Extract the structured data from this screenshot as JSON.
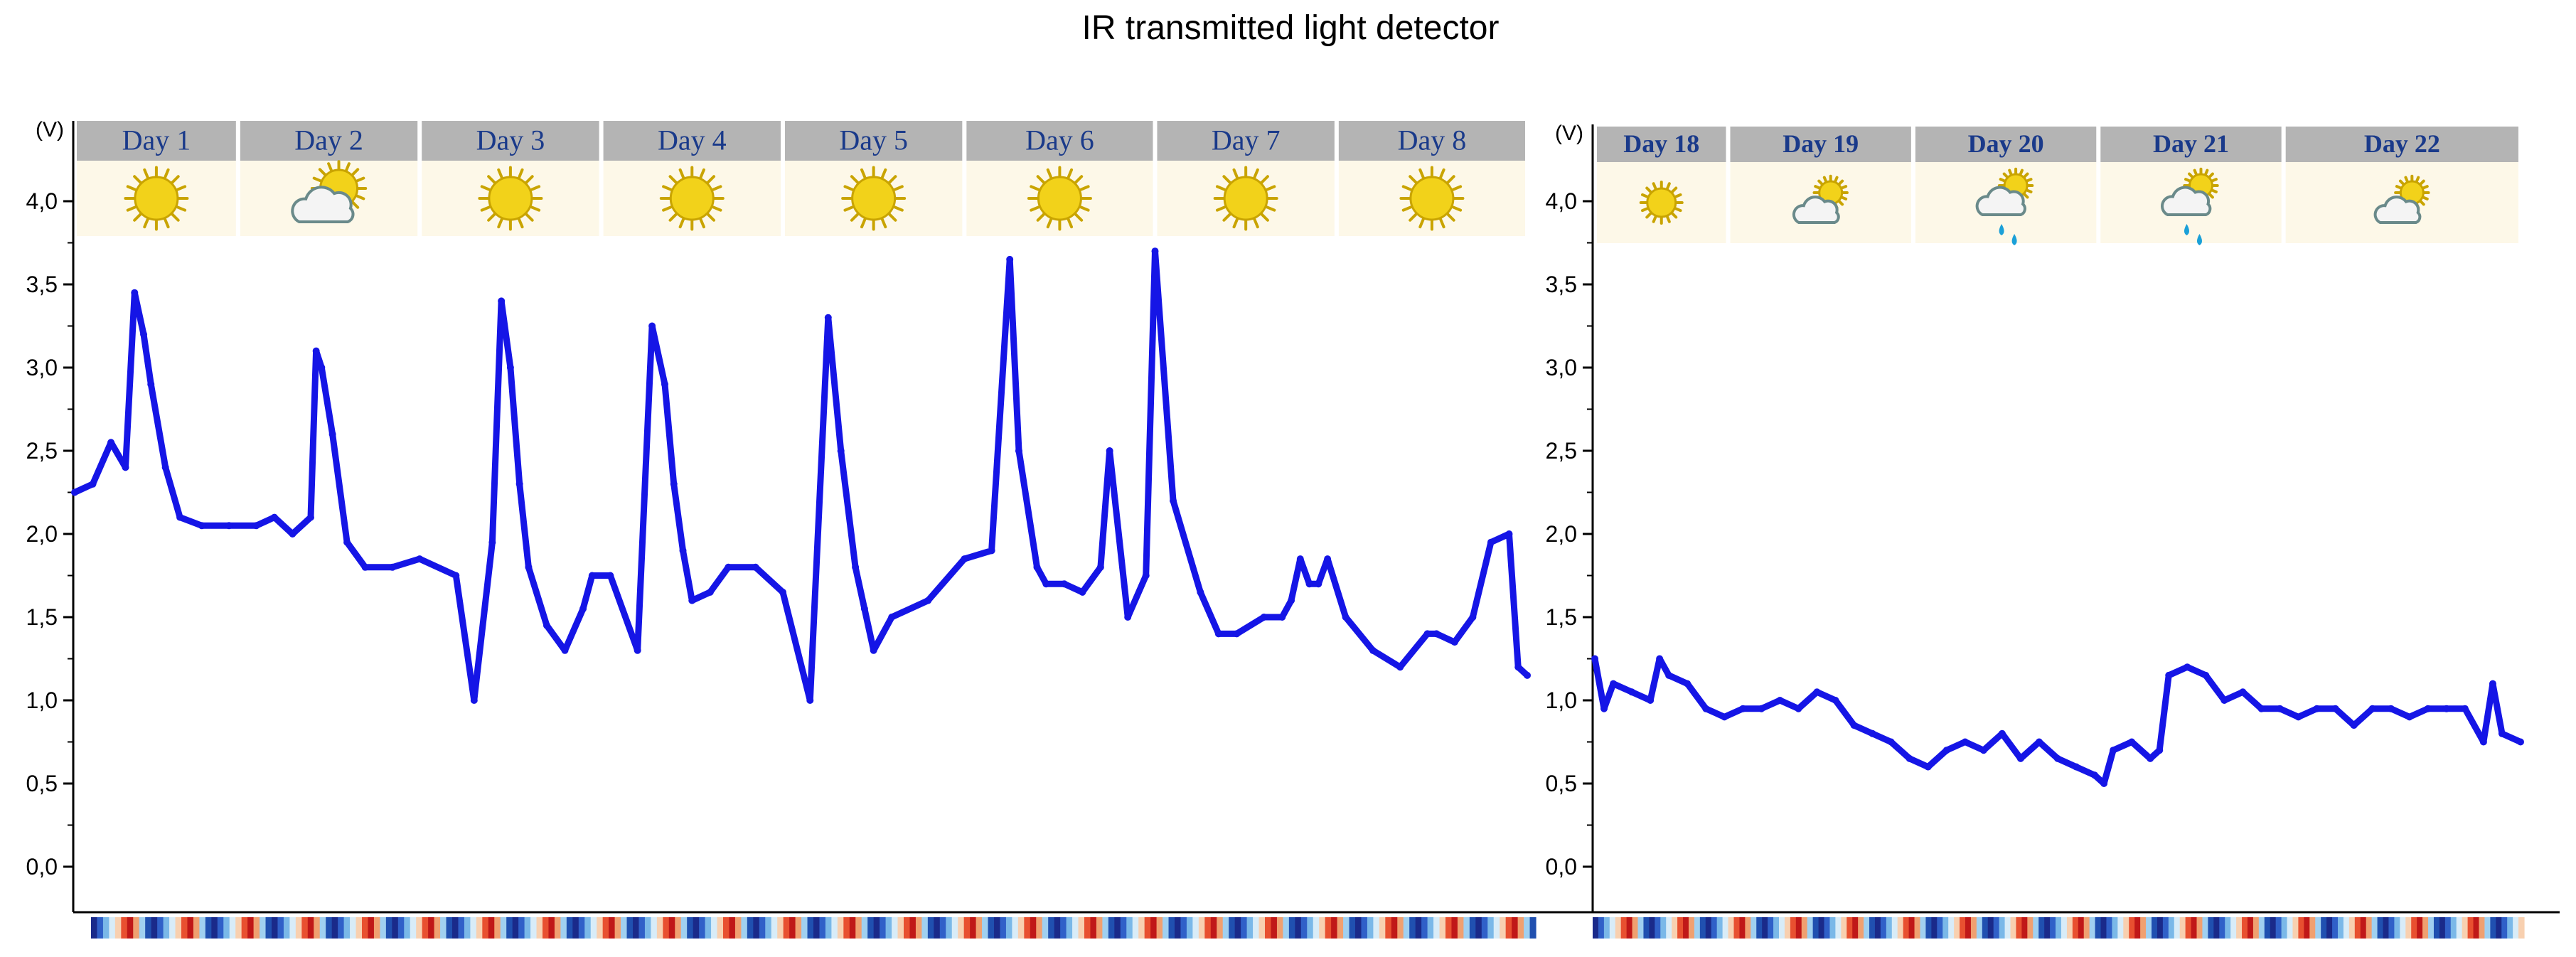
{
  "title": "IR transmitted light detector",
  "colors": {
    "series": "#1515e6",
    "header_fill": "#b4b4b4",
    "header_text": "#1a3a8a",
    "icon_band": "#fdf8e8",
    "sun": "#f2d21a",
    "sun_edge": "#c9a400",
    "rain": "#1aa0d8",
    "axis": "#000000"
  },
  "chart_data": [
    {
      "type": "scatter",
      "name": "panel-left",
      "ylabel": "(V)",
      "ylim": [
        0,
        4.25
      ],
      "yticks": [
        0,
        0.5,
        1.0,
        1.5,
        2.0,
        2.5,
        3.0,
        3.5,
        4.0
      ],
      "ytick_labels": [
        "0,0",
        "0,5",
        "1,0",
        "1,5",
        "2,0",
        "2,5",
        "3,0",
        "3,5",
        "4,0"
      ],
      "xlim": [
        0,
        8
      ],
      "days": [
        {
          "label": "Day 1",
          "weather": "sun-icon",
          "start": 0,
          "end": 0.9
        },
        {
          "label": "Day 2",
          "weather": "sun-cloud-icon",
          "start": 0.9,
          "end": 1.9
        },
        {
          "label": "Day 3",
          "weather": "sun-icon",
          "start": 1.9,
          "end": 2.9
        },
        {
          "label": "Day 4",
          "weather": "sun-icon",
          "start": 2.9,
          "end": 3.9
        },
        {
          "label": "Day 5",
          "weather": "sun-icon",
          "start": 3.9,
          "end": 4.9
        },
        {
          "label": "Day 6",
          "weather": "sun-icon",
          "start": 4.9,
          "end": 5.95
        },
        {
          "label": "Day 7",
          "weather": "sun-icon",
          "start": 5.95,
          "end": 6.95
        },
        {
          "label": "Day 8",
          "weather": "sun-icon",
          "start": 6.95,
          "end": 8.0
        }
      ],
      "x": [
        0.0,
        0.1,
        0.2,
        0.28,
        0.33,
        0.38,
        0.42,
        0.5,
        0.58,
        0.7,
        0.85,
        1.0,
        1.1,
        1.2,
        1.3,
        1.33,
        1.36,
        1.42,
        1.5,
        1.6,
        1.75,
        1.9,
        2.1,
        2.2,
        2.3,
        2.35,
        2.4,
        2.45,
        2.5,
        2.6,
        2.7,
        2.8,
        2.85,
        2.95,
        3.1,
        3.18,
        3.25,
        3.3,
        3.35,
        3.4,
        3.5,
        3.6,
        3.75,
        3.9,
        4.05,
        4.15,
        4.22,
        4.3,
        4.35,
        4.4,
        4.5,
        4.7,
        4.9,
        5.05,
        5.15,
        5.2,
        5.3,
        5.35,
        5.45,
        5.55,
        5.65,
        5.7,
        5.8,
        5.9,
        5.95,
        6.05,
        6.2,
        6.3,
        6.4,
        6.55,
        6.65,
        6.7,
        6.75,
        6.8,
        6.85,
        6.9,
        7.0,
        7.15,
        7.3,
        7.45,
        7.5,
        7.6,
        7.7,
        7.8,
        7.9,
        7.95,
        8.0
      ],
      "y": [
        2.25,
        2.3,
        2.55,
        2.4,
        3.45,
        3.2,
        2.9,
        2.4,
        2.1,
        2.05,
        2.05,
        2.05,
        2.1,
        2.0,
        2.1,
        3.1,
        3.0,
        2.6,
        1.95,
        1.8,
        1.8,
        1.85,
        1.75,
        1.0,
        1.95,
        3.4,
        3.0,
        2.3,
        1.8,
        1.45,
        1.3,
        1.55,
        1.75,
        1.75,
        1.3,
        3.25,
        2.9,
        2.3,
        1.9,
        1.6,
        1.65,
        1.8,
        1.8,
        1.65,
        1.0,
        3.3,
        2.5,
        1.8,
        1.55,
        1.3,
        1.5,
        1.6,
        1.85,
        1.9,
        3.65,
        2.5,
        1.8,
        1.7,
        1.7,
        1.65,
        1.8,
        2.5,
        1.5,
        1.75,
        3.7,
        2.2,
        1.65,
        1.4,
        1.4,
        1.5,
        1.5,
        1.6,
        1.85,
        1.7,
        1.7,
        1.85,
        1.5,
        1.3,
        1.2,
        1.4,
        1.4,
        1.35,
        1.5,
        1.95,
        2.0,
        1.2,
        1.15
      ]
    },
    {
      "type": "scatter",
      "name": "panel-right",
      "ylabel": "(V)",
      "ylim": [
        0,
        4.25
      ],
      "yticks": [
        0,
        0.5,
        1.0,
        1.5,
        2.0,
        2.5,
        3.0,
        3.5,
        4.0
      ],
      "ytick_labels": [
        "0,0",
        "0,5",
        "1,0",
        "1,5",
        "2,0",
        "2,5",
        "3,0",
        "3,5",
        "4,0"
      ],
      "xlim": [
        17,
        22
      ],
      "days": [
        {
          "label": "Day 18",
          "weather": "sun-icon",
          "start": 17,
          "end": 17.72
        },
        {
          "label": "Day 19",
          "weather": "sun-cloud-icon",
          "start": 17.72,
          "end": 18.72
        },
        {
          "label": "Day 20",
          "weather": "sun-cloud-rain-icon",
          "start": 18.72,
          "end": 19.72
        },
        {
          "label": "Day 21",
          "weather": "sun-cloud-rain-icon",
          "start": 19.72,
          "end": 20.72
        },
        {
          "label": "Day 22",
          "weather": "sun-cloud-icon",
          "start": 20.72,
          "end": 22.0
        }
      ],
      "x": [
        17.0,
        17.05,
        17.1,
        17.2,
        17.3,
        17.35,
        17.4,
        17.5,
        17.6,
        17.7,
        17.8,
        17.9,
        18.0,
        18.1,
        18.2,
        18.3,
        18.4,
        18.5,
        18.6,
        18.7,
        18.8,
        18.9,
        19.0,
        19.1,
        19.2,
        19.3,
        19.4,
        19.5,
        19.6,
        19.7,
        19.75,
        19.8,
        19.9,
        20.0,
        20.05,
        20.1,
        20.2,
        20.3,
        20.4,
        20.5,
        20.6,
        20.7,
        20.8,
        20.9,
        21.0,
        21.1,
        21.2,
        21.3,
        21.4,
        21.5,
        21.6,
        21.7,
        21.8,
        21.85,
        21.9,
        22.0
      ],
      "y": [
        1.25,
        0.95,
        1.1,
        1.05,
        1.0,
        1.25,
        1.15,
        1.1,
        0.95,
        0.9,
        0.95,
        0.95,
        1.0,
        0.95,
        1.05,
        1.0,
        0.85,
        0.8,
        0.75,
        0.65,
        0.6,
        0.7,
        0.75,
        0.7,
        0.8,
        0.65,
        0.75,
        0.65,
        0.6,
        0.55,
        0.5,
        0.7,
        0.75,
        0.65,
        0.7,
        1.15,
        1.2,
        1.15,
        1.0,
        1.05,
        0.95,
        0.95,
        0.9,
        0.95,
        0.95,
        0.85,
        0.95,
        0.95,
        0.9,
        0.95,
        0.95,
        0.95,
        0.75,
        1.1,
        0.8,
        0.75
      ]
    }
  ]
}
